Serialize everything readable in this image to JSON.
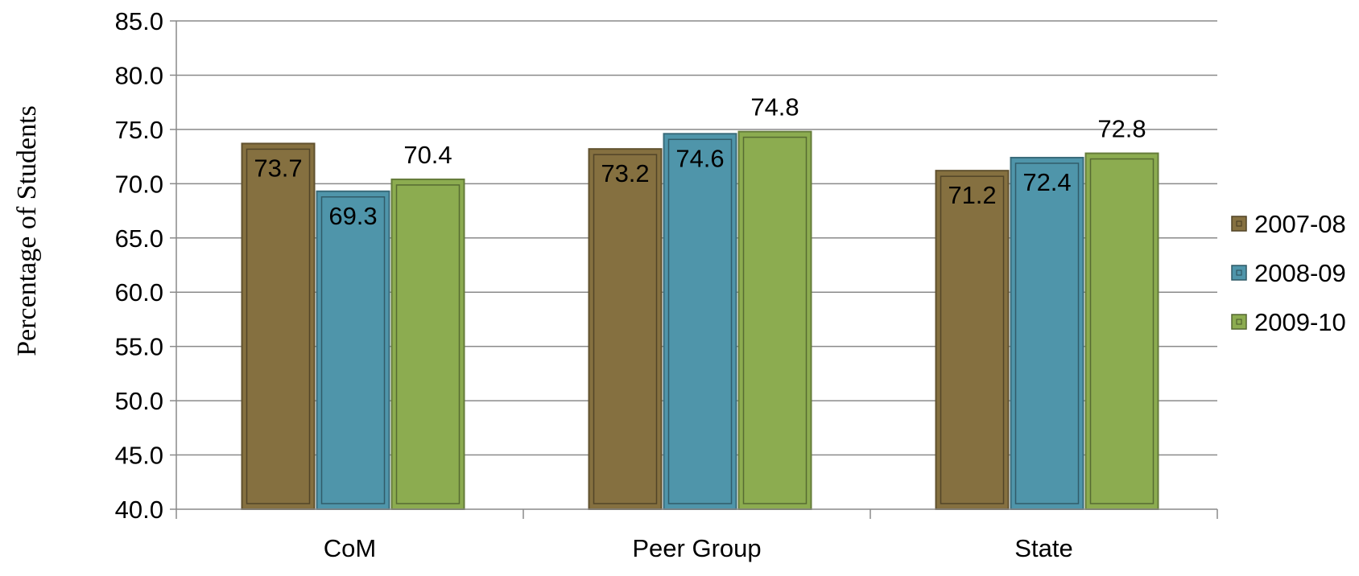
{
  "chart_data": {
    "type": "bar",
    "ylabel": "Percentage of Students",
    "categories": [
      "CoM",
      "Peer Group",
      "State"
    ],
    "series": [
      {
        "name": "2007-08",
        "values": [
          73.7,
          73.2,
          71.2
        ],
        "color": "#857040"
      },
      {
        "name": "2008-09",
        "values": [
          69.3,
          74.6,
          72.4
        ],
        "color": "#4f95aa"
      },
      {
        "name": "2009-10",
        "values": [
          70.4,
          74.8,
          72.8
        ],
        "color": "#8cac50"
      }
    ],
    "ylim": [
      40,
      85
    ],
    "yticks": [
      "40.0",
      "45.0",
      "50.0",
      "55.0",
      "60.0",
      "65.0",
      "70.0",
      "75.0",
      "80.0",
      "85.0"
    ],
    "grid": true,
    "legend_position": "right",
    "data_labels": true
  }
}
